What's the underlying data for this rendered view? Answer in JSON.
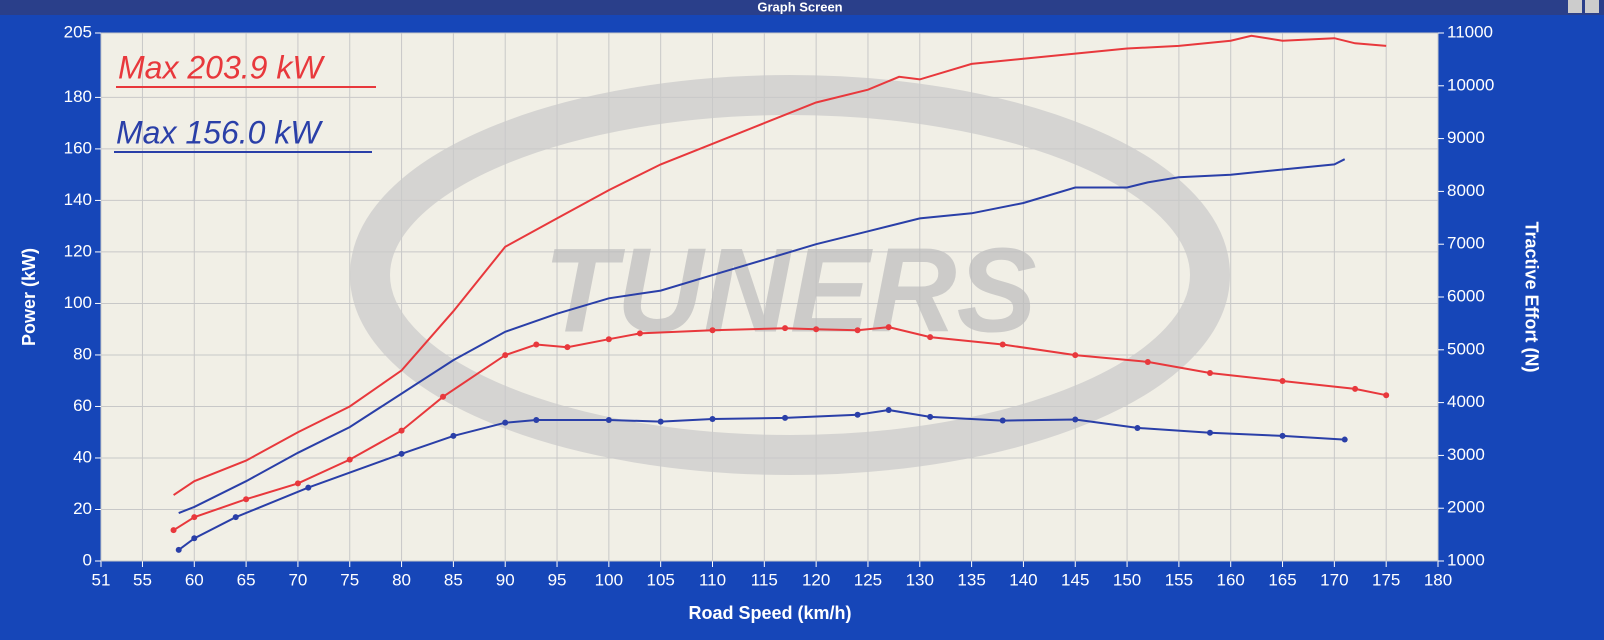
{
  "window_title": "Graph Screen",
  "chart_data": {
    "type": "line",
    "watermark": "TUNERS",
    "x_label": "Road Speed (km/h)",
    "y_label": "Power (kW)",
    "y2_label": "Tractive Effort (N)",
    "annotations": [
      {
        "text": "Max 203.9 kW",
        "color": "#e8383c"
      },
      {
        "text": "Max 156.0 kW",
        "color": "#2a3fa8"
      }
    ],
    "xlim": [
      51,
      180
    ],
    "xticks": [
      51,
      55,
      60,
      65,
      70,
      75,
      80,
      85,
      90,
      95,
      100,
      105,
      110,
      115,
      120,
      125,
      130,
      135,
      140,
      145,
      150,
      155,
      160,
      165,
      170,
      175,
      180
    ],
    "ylim": [
      0,
      205
    ],
    "yticks": [
      0,
      20,
      40,
      60,
      80,
      100,
      120,
      140,
      160,
      180,
      205
    ],
    "y2lim": [
      1000,
      11000
    ],
    "y2ticks": [
      1000,
      2000,
      3000,
      4000,
      5000,
      6000,
      7000,
      8000,
      9000,
      10000,
      11000
    ],
    "grid": true,
    "series": [
      {
        "color": "#e8383c",
        "markers": false,
        "x": [
          58,
          60,
          65,
          70,
          75,
          80,
          85,
          90,
          95,
          100,
          105,
          110,
          115,
          120,
          125,
          128,
          130,
          135,
          140,
          145,
          150,
          155,
          160,
          162,
          165,
          170,
          172,
          175
        ],
        "values": [
          25.6,
          31,
          39,
          50,
          60,
          74,
          97,
          122,
          133,
          144,
          154,
          162,
          170,
          178,
          183,
          188,
          187,
          193,
          195,
          197,
          199,
          200,
          202,
          203.9,
          202,
          203,
          201,
          200
        ]
      },
      {
        "color": "#2a3fa8",
        "markers": false,
        "x": [
          58.5,
          60,
          65,
          70,
          75,
          80,
          85,
          90,
          95,
          100,
          105,
          110,
          115,
          120,
          125,
          130,
          135,
          140,
          145,
          150,
          152,
          155,
          160,
          165,
          170,
          171
        ],
        "values": [
          18.6,
          21,
          31,
          42,
          52,
          65,
          78,
          89,
          96,
          102,
          105,
          111,
          117,
          123,
          128,
          133,
          135,
          139,
          145,
          145,
          147,
          149,
          150,
          152,
          154,
          156
        ]
      },
      {
        "color": "#e8383c",
        "axis": "y2",
        "markers": true,
        "x": [
          58,
          60,
          65,
          70,
          75,
          80,
          84,
          90,
          93,
          96,
          100,
          103,
          110,
          117,
          120,
          124,
          127,
          131,
          138,
          145,
          152,
          158,
          165,
          172,
          175
        ],
        "values": [
          1584,
          1830,
          2170,
          2470,
          2920,
          3470,
          4110,
          4900,
          5100,
          5050,
          5200,
          5310,
          5370,
          5410,
          5390,
          5370,
          5430,
          5240,
          5100,
          4900,
          4770,
          4560,
          4410,
          4260,
          4140
        ]
      },
      {
        "color": "#2a3fa8",
        "axis": "y2",
        "markers": true,
        "x": [
          58.5,
          60,
          64,
          71,
          80,
          85,
          90,
          93,
          100,
          105,
          110,
          117,
          124,
          127,
          131,
          138,
          145,
          151,
          158,
          165,
          171
        ],
        "values": [
          1210,
          1430,
          1830,
          2390,
          3030,
          3370,
          3620,
          3670,
          3670,
          3640,
          3690,
          3710,
          3770,
          3860,
          3730,
          3660,
          3680,
          3520,
          3430,
          3370,
          3300
        ]
      }
    ]
  }
}
